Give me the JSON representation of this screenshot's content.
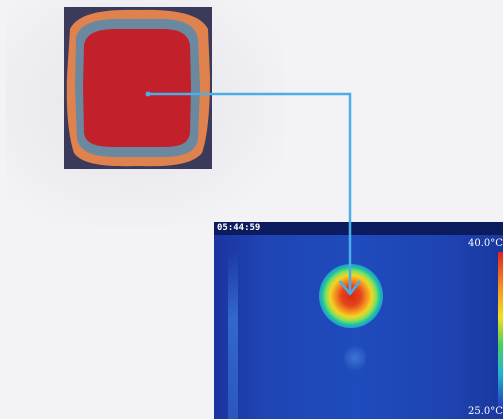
{
  "thermal": {
    "timestamp": "05:44:59",
    "scale_max": "40.0°C",
    "scale_min": "25.0°C"
  },
  "colors": {
    "arrow": "#4aaee8",
    "cell_core": "#c2212b",
    "cell_border": "#6a88a0",
    "cell_halo": "#e0824e",
    "sim_background": "#3b3a5a"
  }
}
